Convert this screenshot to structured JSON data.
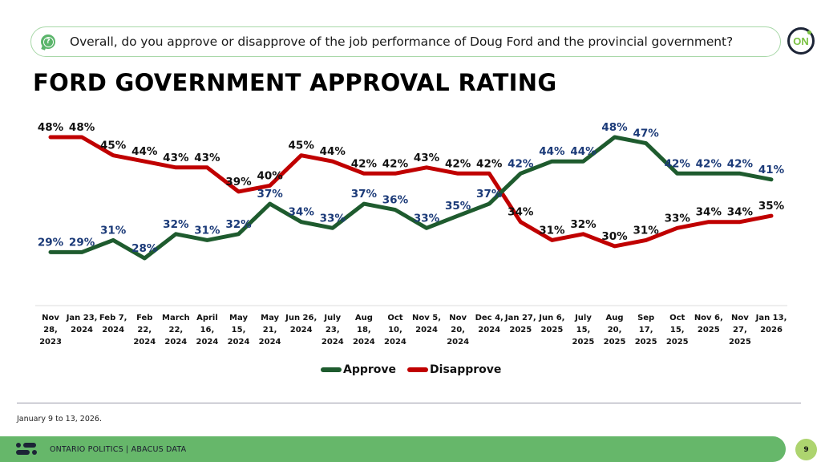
{
  "question": {
    "icon": "question-bubble-icon",
    "text": "Overall, do you approve or disapprove of the job performance of Doug Ford and the provincial government?"
  },
  "logo": {
    "text": "ON",
    "icon": "ontario-logo-icon"
  },
  "title": "FORD GOVERNMENT APPROVAL RATING",
  "colors": {
    "approve": "#1e5b2e",
    "disapprove": "#c00000",
    "approve_label": "#1b3a78",
    "disapprove_label": "#111111",
    "footer": "#66b76a",
    "page_badge": "#add46f"
  },
  "chart_data": {
    "type": "line",
    "title": "FORD GOVERNMENT APPROVAL RATING",
    "xlabel": "",
    "ylabel": "",
    "ylim": [
      25,
      50
    ],
    "grid": false,
    "legend_position": "bottom",
    "categories": [
      [
        "Nov",
        "28,",
        "2023"
      ],
      [
        "Jan 23,",
        "2024"
      ],
      [
        "Feb 7,",
        "2024"
      ],
      [
        "Feb",
        "22,",
        "2024"
      ],
      [
        "March",
        "22,",
        "2024"
      ],
      [
        "April",
        "16,",
        "2024"
      ],
      [
        "May",
        "15,",
        "2024"
      ],
      [
        "May",
        "21,",
        "2024"
      ],
      [
        "Jun 26,",
        "2024"
      ],
      [
        "July",
        "23,",
        "2024"
      ],
      [
        "Aug",
        "18,",
        "2024"
      ],
      [
        "Oct",
        "10,",
        "2024"
      ],
      [
        "Nov 5,",
        "2024"
      ],
      [
        "Nov",
        "20,",
        "2024"
      ],
      [
        "Dec 4,",
        "2024"
      ],
      [
        "Jan 27,",
        "2025"
      ],
      [
        "Jun 6,",
        "2025"
      ],
      [
        "July",
        "15,",
        "2025"
      ],
      [
        "Aug",
        "20,",
        "2025"
      ],
      [
        "Sep",
        "17,",
        "2025"
      ],
      [
        "Oct",
        "15,",
        "2025"
      ],
      [
        "Nov 6,",
        "2025"
      ],
      [
        "Nov",
        "27,",
        "2025"
      ],
      [
        "Jan 13,",
        "2026"
      ]
    ],
    "series": [
      {
        "name": "Approve",
        "key": "approve",
        "values": [
          29,
          29,
          31,
          28,
          32,
          31,
          32,
          37,
          34,
          33,
          37,
          36,
          33,
          35,
          37,
          42,
          44,
          44,
          48,
          47,
          42,
          42,
          42,
          41
        ]
      },
      {
        "name": "Disapprove",
        "key": "disapprove",
        "values": [
          48,
          48,
          45,
          44,
          43,
          43,
          39,
          40,
          45,
          44,
          42,
          42,
          43,
          42,
          42,
          34,
          31,
          32,
          30,
          31,
          33,
          34,
          34,
          35
        ]
      }
    ],
    "value_suffix": "%"
  },
  "legend": [
    {
      "label": "Approve",
      "color": "#1e5b2e"
    },
    {
      "label": "Disapprove",
      "color": "#c00000"
    }
  ],
  "source_note": "January 9 to 13, 2026.",
  "footer": {
    "icon": "abacus-logo-icon",
    "text": "ONTARIO POLITICS  |  ABACUS DATA",
    "page_number": "9"
  }
}
